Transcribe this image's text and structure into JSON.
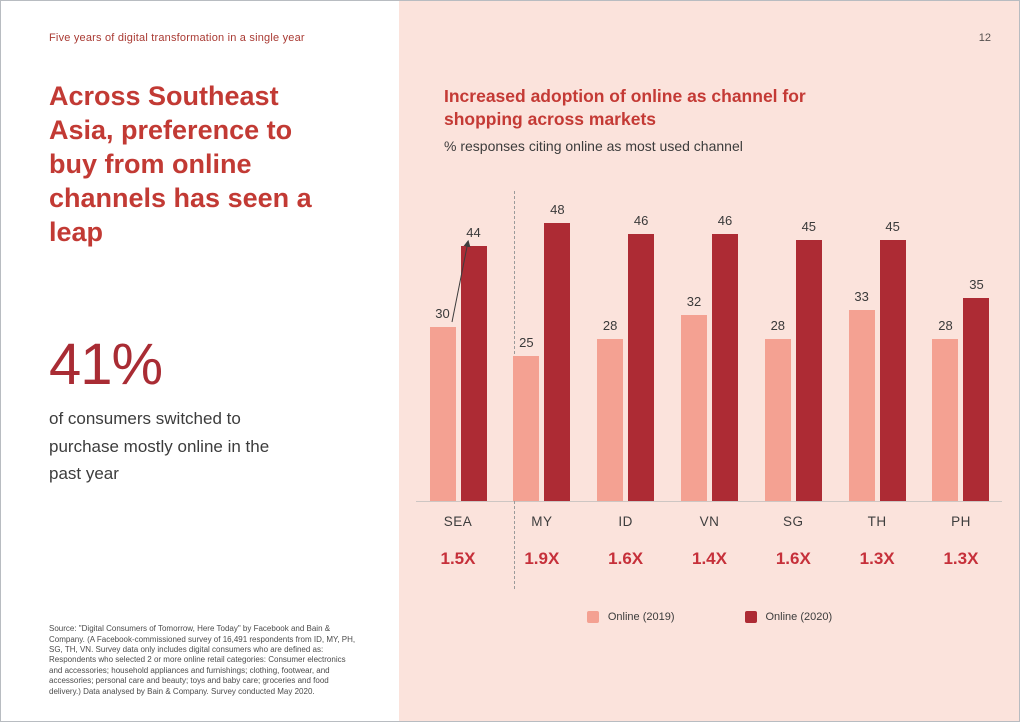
{
  "page": {
    "eyebrow": "Five years of digital transformation in a single year",
    "page_number": "12"
  },
  "left_panel": {
    "headline": "Across Southeast Asia, preference to buy from online channels has seen a leap",
    "stat_value": "41%",
    "stat_caption": "of consumers switched to purchase mostly online in the past year",
    "source_note": "Source: \"Digital Consumers of Tomorrow, Here Today\" by Facebook and Bain & Company. (A Facebook-commissioned survey of 16,491 respondents from ID, MY, PH, SG, TH, VN. Survey data only includes digital consumers who are defined as: Respondents who selected 2 or more online retail categories: Consumer electronics and accessories; household appliances and furnishings; clothing, footwear, and accessories; personal care and beauty; toys and baby care; groceries and food delivery.) Data analysed by Bain & Company. Survey conducted May 2020."
  },
  "chart_data": {
    "type": "bar",
    "title": "Increased adoption of online as channel for shopping across markets",
    "subtitle": "% responses citing online as most used channel",
    "categories": [
      "SEA",
      "MY",
      "ID",
      "VN",
      "SG",
      "TH",
      "PH"
    ],
    "series": [
      {
        "name": "Online (2019)",
        "color": "#f4a192",
        "values": [
          30,
          25,
          28,
          32,
          28,
          33,
          28
        ]
      },
      {
        "name": "Online (2020)",
        "color": "#ad2b34",
        "values": [
          44,
          48,
          46,
          46,
          45,
          45,
          35
        ]
      }
    ],
    "multipliers": [
      "1.5X",
      "1.9X",
      "1.6X",
      "1.4X",
      "1.6X",
      "1.3X",
      "1.3X"
    ],
    "ylim": [
      0,
      55
    ],
    "grid": false,
    "legend_position": "bottom",
    "annotations": [
      "arrow from SEA 2019 bar top to SEA 2020 bar top"
    ]
  },
  "colors": {
    "background_pink": "#fbe3dc",
    "brand_red": "#c43a35",
    "stat_red": "#a92c34",
    "multiplier_red": "#c6303a",
    "bar_2019": "#f4a192",
    "bar_2020": "#ad2b34",
    "text_dark": "#3c3c3c"
  }
}
